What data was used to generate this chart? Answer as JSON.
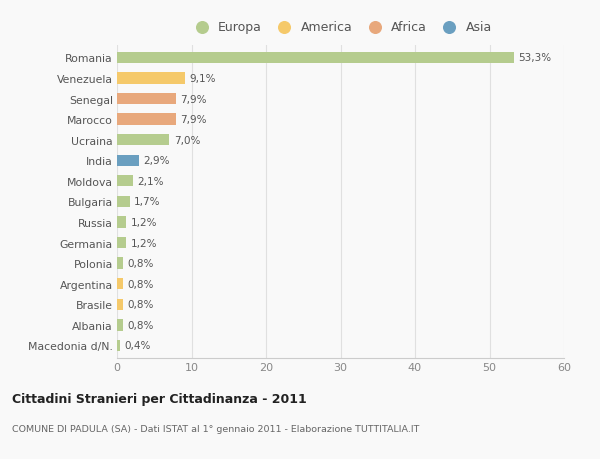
{
  "countries": [
    "Romania",
    "Venezuela",
    "Senegal",
    "Marocco",
    "Ucraina",
    "India",
    "Moldova",
    "Bulgaria",
    "Russia",
    "Germania",
    "Polonia",
    "Argentina",
    "Brasile",
    "Albania",
    "Macedonia d/N."
  ],
  "values": [
    53.3,
    9.1,
    7.9,
    7.9,
    7.0,
    2.9,
    2.1,
    1.7,
    1.2,
    1.2,
    0.8,
    0.8,
    0.8,
    0.8,
    0.4
  ],
  "labels": [
    "53,3%",
    "9,1%",
    "7,9%",
    "7,9%",
    "7,0%",
    "2,9%",
    "2,1%",
    "1,7%",
    "1,2%",
    "1,2%",
    "0,8%",
    "0,8%",
    "0,8%",
    "0,8%",
    "0,4%"
  ],
  "continents": [
    "Europa",
    "America",
    "Africa",
    "Africa",
    "Europa",
    "Asia",
    "Europa",
    "Europa",
    "Europa",
    "Europa",
    "Europa",
    "America",
    "America",
    "Europa",
    "Europa"
  ],
  "colors": {
    "Europa": "#b5cc8e",
    "America": "#f5c96a",
    "Africa": "#e8a87c",
    "Asia": "#6a9fc0"
  },
  "title": "Cittadini Stranieri per Cittadinanza - 2011",
  "subtitle": "COMUNE DI PADULA (SA) - Dati ISTAT al 1° gennaio 2011 - Elaborazione TUTTITALIA.IT",
  "xlim": [
    0,
    60
  ],
  "xticks": [
    0,
    10,
    20,
    30,
    40,
    50,
    60
  ],
  "bg_color": "#f9f9f9",
  "grid_color": "#e0e0e0",
  "bar_height": 0.55
}
